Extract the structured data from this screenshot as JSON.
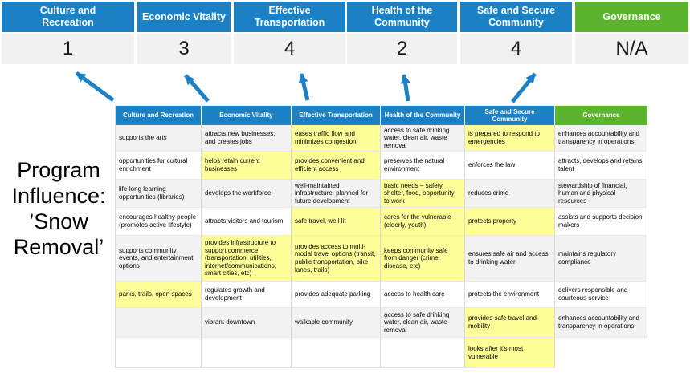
{
  "colors": {
    "blue": "#1b80c4",
    "green": "#5cb42e",
    "yellow": "#ffff99",
    "band-gray": "#f1f1f1",
    "row-gray": "#f2f2f2"
  },
  "program_label": "Program\nInfluence:\n’Snow\nRemoval’",
  "scoreboard": {
    "columns": [
      {
        "label": "Culture and\nRecreation",
        "score": "1"
      },
      {
        "label": "Economic Vitality",
        "score": "3"
      },
      {
        "label": "Effective\nTransportation",
        "score": "4"
      },
      {
        "label": "Health of the\nCommunity",
        "score": "2"
      },
      {
        "label": "Safe and Secure\nCommunity",
        "score": "4"
      },
      {
        "label": "Governance",
        "score": "N/A"
      }
    ]
  },
  "matrix": {
    "headers": [
      "Culture and Recreation",
      "Economic Vitality",
      "Effective Transportation",
      "Health of the Community",
      "Safe and Secure\nCommunity",
      "Governance"
    ],
    "columns": [
      {
        "header": "Culture and Recreation",
        "cells": [
          {
            "text": "supports the arts",
            "highlighted": false
          },
          {
            "text": "opportunities for cultural enrichment",
            "highlighted": false
          },
          {
            "text": "life-long learning opportunities (libraries)",
            "highlighted": false
          },
          {
            "text": "encourages healthy people (promotes active lifestyle)",
            "highlighted": false
          },
          {
            "text": "supports community events, and entertainment options",
            "highlighted": false
          },
          {
            "text": "parks, trails, open spaces",
            "highlighted": true
          },
          {
            "text": "",
            "highlighted": false
          },
          {
            "text": "",
            "highlighted": false
          }
        ]
      },
      {
        "header": "Economic Vitality",
        "cells": [
          {
            "text": "attracts new businesses, and creates jobs",
            "highlighted": false
          },
          {
            "text": "helps retain current businesses",
            "highlighted": true
          },
          {
            "text": "develops the workforce",
            "highlighted": false
          },
          {
            "text": "attracts visitors and tourism",
            "highlighted": false
          },
          {
            "text": "provides infrastructure to support commerce (transportation, utilities, internet/communications, smart cities, etc)",
            "highlighted": true
          },
          {
            "text": "regulates growth and development",
            "highlighted": false
          },
          {
            "text": "vibrant downtown",
            "highlighted": false
          },
          {
            "text": "",
            "highlighted": false
          }
        ]
      },
      {
        "header": "Effective Transportation",
        "cells": [
          {
            "text": "eases traffic flow and minimizes congestion",
            "highlighted": true
          },
          {
            "text": "provides convenient and efficient access",
            "highlighted": true
          },
          {
            "text": "well-maintained infrastructure, planned for future development",
            "highlighted": false
          },
          {
            "text": "safe travel, well-lit",
            "highlighted": true
          },
          {
            "text": "provides access to multi-modal travel options (transit, public transportation, bike lanes, trails)",
            "highlighted": true
          },
          {
            "text": "provides adequate parking",
            "highlighted": false
          },
          {
            "text": "walkable community",
            "highlighted": false
          },
          {
            "text": "",
            "highlighted": false
          }
        ]
      },
      {
        "header": "Health of the Community",
        "cells": [
          {
            "text": "access to safe drinking water, clean air, waste removal",
            "highlighted": false
          },
          {
            "text": "preserves the natural environment",
            "highlighted": false
          },
          {
            "text": "basic needs – safety, shelter, food, opportunity to work",
            "highlighted": true
          },
          {
            "text": "cares for the vulnerable (elderly, youth)",
            "highlighted": true
          },
          {
            "text": "keeps community safe from danger (crime, disease, etc)",
            "highlighted": true
          },
          {
            "text": "access to health care",
            "highlighted": false
          },
          {
            "text": "access to safe drinking water, clean air, waste removal",
            "highlighted": false
          },
          {
            "text": "",
            "highlighted": false
          }
        ]
      },
      {
        "header": "Safe and Secure Community",
        "cells": [
          {
            "text": "is prepared to respond to emergencies",
            "highlighted": true
          },
          {
            "text": "enforces the law",
            "highlighted": false
          },
          {
            "text": "reduces crime",
            "highlighted": false
          },
          {
            "text": "protects property",
            "highlighted": true
          },
          {
            "text": "ensures safe air and access to drinking water",
            "highlighted": false
          },
          {
            "text": "protects the environment",
            "highlighted": false
          },
          {
            "text": "provides safe travel and mobility",
            "highlighted": true
          },
          {
            "text": "looks after it's most vulnerable",
            "highlighted": true
          }
        ]
      },
      {
        "header": "Governance",
        "cells": [
          {
            "text": "enhances accountability and transparency in operations",
            "highlighted": false
          },
          {
            "text": "attracts, develops and retains talent",
            "highlighted": false
          },
          {
            "text": "stewardship of financial, human and physical resources",
            "highlighted": false
          },
          {
            "text": "assists and supports decision makers",
            "highlighted": false
          },
          {
            "text": "maintains regulatory compliance",
            "highlighted": false
          },
          {
            "text": "delivers responsible and courteous service",
            "highlighted": false
          },
          {
            "text": "enhances accountability and transparency in operations",
            "highlighted": false
          },
          {
            "text": "",
            "highlighted": false,
            "absent": true
          }
        ]
      }
    ]
  }
}
